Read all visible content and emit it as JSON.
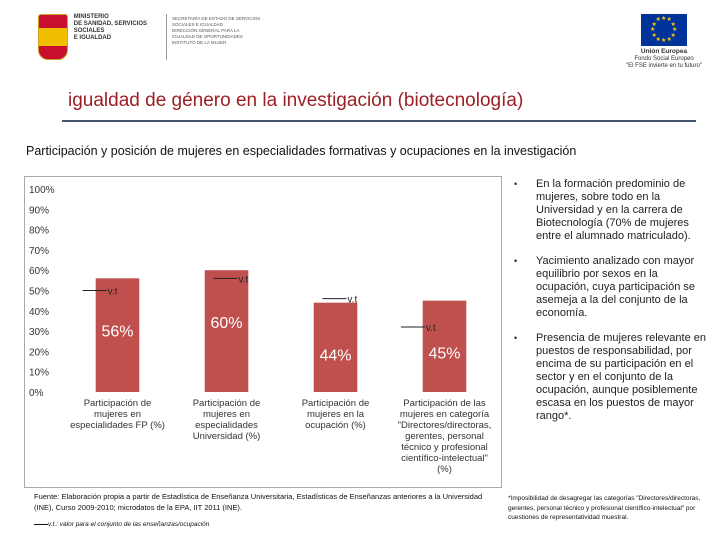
{
  "header": {
    "gov_name": [
      "MINISTERIO",
      "DE SANIDAD, SERVICIOS SOCIALES",
      "E IGUALDAD"
    ],
    "gov_sub": [
      "SECRETARÍA DE ESTADO DE SERVICIOS SOCIALES E IGUALDAD",
      "DIRECCIÓN GENERAL PARA LA IGUALDAD DE OPORTUNIDADES",
      "INSTITUTO DE LA MUJER"
    ],
    "eu_name": "Unión Europea",
    "eu_fund": "Fondo Social Europeo",
    "eu_motto": "\"El FSE invierte en tu futuro\""
  },
  "title": "igualdad de género en la investigación (biotecnología)",
  "subtitle": "Participación y posición de mujeres en especialidades formativas y ocupaciones en la investigación",
  "chart_data": {
    "type": "bar",
    "categories": [
      [
        "Participación de",
        "mujeres en",
        "especialidades FP (%)"
      ],
      [
        "Participación de",
        "mujeres en",
        "especialidades",
        "Universidad (%)"
      ],
      [
        "Participación de",
        "mujeres en la",
        "ocupación (%)"
      ],
      [
        "Participación de las",
        "mujeres en categoría",
        "\"Directores/directoras,",
        "gerentes, personal",
        "técnico y profesional",
        "científico-intelectual\"",
        "(%)"
      ]
    ],
    "values": [
      56,
      60,
      44,
      45
    ],
    "value_labels": [
      "56%",
      "60%",
      "44%",
      "45%"
    ],
    "reference_values": [
      50,
      56,
      46,
      32
    ],
    "reference_label": "v.t",
    "yticks": [
      "0%",
      "10%",
      "20%",
      "30%",
      "40%",
      "50%",
      "60%",
      "70%",
      "80%",
      "90%",
      "100%"
    ],
    "ylim": [
      0,
      100
    ],
    "bar_color": "#c0504d",
    "label_color": "#ffffff",
    "grid": false
  },
  "source": "Fuente: Elaboración propia a partir de Estadística de Enseñanza Universitaria, Estadísticas de Enseñanzas anteriores a la Universidad (INE), Curso 2009-2010; microdatos de la EPA, IIT 2011 (INE).",
  "vt_note": "v.t.: valor para el conjunto de las enseñanzas/ocupación",
  "bullets": [
    "En la formación predominio de mujeres, sobre todo en la Universidad y en la carrera de Biotecnología (70% de mujeres entre el alumnado matriculado).",
    "Yacimiento analizado con mayor equilibrio por sexos en la ocupación, cuya participación se asemeja a la del conjunto de la economía.",
    "Presencia de mujeres relevante en puestos de responsabilidad, por encima de su participación en el sector y en el conjunto de la ocupación, aunque posiblemente escasa en los puestos de mayor rango*."
  ],
  "footnote": "*Imposibilidad de desagregar las categorías \"Directores/directoras, gerentes, personal técnico y profesional científico-intelectual\" por cuestiones de representatividad muestral."
}
